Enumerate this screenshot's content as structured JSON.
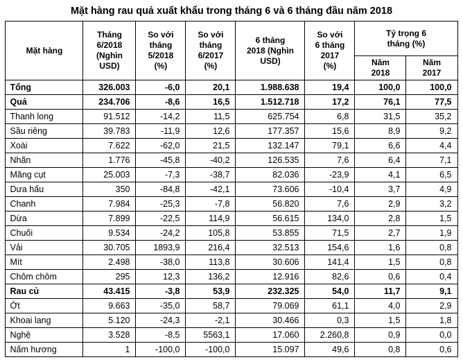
{
  "page": {
    "title": "Mặt hàng rau quả xuất khẩu trong tháng 6 và 6 tháng đầu năm 2018"
  },
  "table": {
    "headers": {
      "item": "Mặt hàng",
      "month_value": "Tháng\n6/2018\n(Nghìn\nUSD)",
      "vs_prev_month": "So với\ntháng\n5/2018\n(%)",
      "vs_same_month_2017": "So với\ntháng\n6/2017\n(%)",
      "six_month_value": "6 tháng\n2018 (Nghìn\nUSD)",
      "vs_six_month_2017": "So với\n6 tháng\n2017\n(%)",
      "share_group": "Tỷ trọng 6\ntháng (%)",
      "share_2018": "Năm\n2018",
      "share_2017": "Năm\n2017"
    },
    "rows": [
      {
        "label": "Tổng",
        "bold": true,
        "values": [
          "326.003",
          "-6,0",
          "20,1",
          "1.988.638",
          "19,4",
          "100,0",
          "100,0"
        ]
      },
      {
        "label": "Quả",
        "bold": true,
        "values": [
          "234.706",
          "-8,6",
          "16,5",
          "1.512.718",
          "17,2",
          "76,1",
          "77,5"
        ]
      },
      {
        "label": "Thanh long",
        "bold": false,
        "values": [
          "91.512",
          "-14,2",
          "11,5",
          "625.754",
          "6,8",
          "31,5",
          "35,2"
        ]
      },
      {
        "label": "Sầu riêng",
        "bold": false,
        "values": [
          "39.783",
          "-11,9",
          "12,6",
          "177.357",
          "15,6",
          "8,9",
          "9,2"
        ]
      },
      {
        "label": "Xoài",
        "bold": false,
        "values": [
          "7.622",
          "-62,0",
          "21,5",
          "132.147",
          "79,1",
          "6,6",
          "4,4"
        ]
      },
      {
        "label": "Nhãn",
        "bold": false,
        "values": [
          "1.776",
          "-45,8",
          "-40,2",
          "126.535",
          "7,6",
          "6,4",
          "7,1"
        ]
      },
      {
        "label": "Măng cụt",
        "bold": false,
        "values": [
          "25.003",
          "-7,3",
          "-38,7",
          "82.036",
          "-23,9",
          "4,1",
          "6,5"
        ]
      },
      {
        "label": "Dưa hấu",
        "bold": false,
        "values": [
          "350",
          "-84,8",
          "-42,1",
          "73.606",
          "-10,4",
          "3,7",
          "4,9"
        ]
      },
      {
        "label": "Chanh",
        "bold": false,
        "values": [
          "7.984",
          "-25,3",
          "-7,8",
          "56.820",
          "7,6",
          "2,9",
          "3,2"
        ]
      },
      {
        "label": "Dừa",
        "bold": false,
        "values": [
          "7.899",
          "-22,5",
          "114,9",
          "56.615",
          "134,0",
          "2,8",
          "1,5"
        ]
      },
      {
        "label": "Chuối",
        "bold": false,
        "values": [
          "9.534",
          "-24,2",
          "105,8",
          "53.855",
          "71,5",
          "2,7",
          "1,9"
        ]
      },
      {
        "label": "Vải",
        "bold": false,
        "values": [
          "30.705",
          "1893,9",
          "216,4",
          "32.513",
          "154,6",
          "1,6",
          "0,8"
        ]
      },
      {
        "label": "Mít",
        "bold": false,
        "values": [
          "2.498",
          "-38,0",
          "113,8",
          "30.606",
          "141,4",
          "1,5",
          "0,8"
        ]
      },
      {
        "label": "Chôm chôm",
        "bold": false,
        "values": [
          "295",
          "12,3",
          "136,2",
          "12.916",
          "82,6",
          "0,6",
          "0,4"
        ]
      },
      {
        "label": "Rau củ",
        "bold": true,
        "values": [
          "43.415",
          "-3,8",
          "53,9",
          "232.325",
          "54,0",
          "11,7",
          "9,1"
        ]
      },
      {
        "label": "Ớt",
        "bold": false,
        "values": [
          "9.663",
          "-35,0",
          "58,7",
          "79.069",
          "61,1",
          "4,0",
          "2,9"
        ]
      },
      {
        "label": "Khoai lang",
        "bold": false,
        "values": [
          "5.120",
          "-24,3",
          "-2,1",
          "30.466",
          "0,3",
          "1,5",
          "1,8"
        ]
      },
      {
        "label": "Nghệ",
        "bold": false,
        "values": [
          "3.528",
          "-8,5",
          "5563,1",
          "17.060",
          "2.260,8",
          "0,9",
          "0,0"
        ]
      },
      {
        "label": "Nấm hương",
        "bold": false,
        "values": [
          "1",
          "-100,0",
          "-100,0",
          "15.097",
          "49,6",
          "0,8",
          "0,6"
        ]
      }
    ]
  },
  "chart_data": {
    "type": "table",
    "title": "Mặt hàng rau quả xuất khẩu trong tháng 6 và 6 tháng đầu năm 2018",
    "columns": [
      "Mặt hàng",
      "Tháng 6/2018 (Nghìn USD)",
      "So với tháng 5/2018 (%)",
      "So với tháng 6/2017 (%)",
      "6 tháng 2018 (Nghìn USD)",
      "So với 6 tháng 2017 (%)",
      "Tỷ trọng 6 tháng (%) - Năm 2018",
      "Tỷ trọng 6 tháng (%) - Năm 2017"
    ],
    "rows": [
      [
        "Tổng",
        326003,
        -6.0,
        20.1,
        1988638,
        19.4,
        100.0,
        100.0
      ],
      [
        "Quả",
        234706,
        -8.6,
        16.5,
        1512718,
        17.2,
        76.1,
        77.5
      ],
      [
        "Thanh long",
        91512,
        -14.2,
        11.5,
        625754,
        6.8,
        31.5,
        35.2
      ],
      [
        "Sầu riêng",
        39783,
        -11.9,
        12.6,
        177357,
        15.6,
        8.9,
        9.2
      ],
      [
        "Xoài",
        7622,
        -62.0,
        21.5,
        132147,
        79.1,
        6.6,
        4.4
      ],
      [
        "Nhãn",
        1776,
        -45.8,
        -40.2,
        126535,
        7.6,
        6.4,
        7.1
      ],
      [
        "Măng cụt",
        25003,
        -7.3,
        -38.7,
        82036,
        -23.9,
        4.1,
        6.5
      ],
      [
        "Dưa hấu",
        350,
        -84.8,
        -42.1,
        73606,
        -10.4,
        3.7,
        4.9
      ],
      [
        "Chanh",
        7984,
        -25.3,
        -7.8,
        56820,
        7.6,
        2.9,
        3.2
      ],
      [
        "Dừa",
        7899,
        -22.5,
        114.9,
        56615,
        134.0,
        2.8,
        1.5
      ],
      [
        "Chuối",
        9534,
        -24.2,
        105.8,
        53855,
        71.5,
        2.7,
        1.9
      ],
      [
        "Vải",
        30705,
        1893.9,
        216.4,
        32513,
        154.6,
        1.6,
        0.8
      ],
      [
        "Mít",
        2498,
        -38.0,
        113.8,
        30606,
        141.4,
        1.5,
        0.8
      ],
      [
        "Chôm chôm",
        295,
        12.3,
        136.2,
        12916,
        82.6,
        0.6,
        0.4
      ],
      [
        "Rau củ",
        43415,
        -3.8,
        53.9,
        232325,
        54.0,
        11.7,
        9.1
      ],
      [
        "Ớt",
        9663,
        -35.0,
        58.7,
        79069,
        61.1,
        4.0,
        2.9
      ],
      [
        "Khoai lang",
        5120,
        -24.3,
        -2.1,
        30466,
        0.3,
        1.5,
        1.8
      ],
      [
        "Nghệ",
        3528,
        -8.5,
        5563.1,
        17060,
        2260.8,
        0.9,
        0.0
      ],
      [
        "Nấm hương",
        1,
        -100.0,
        -100.0,
        15097,
        49.6,
        0.8,
        0.6
      ]
    ]
  }
}
